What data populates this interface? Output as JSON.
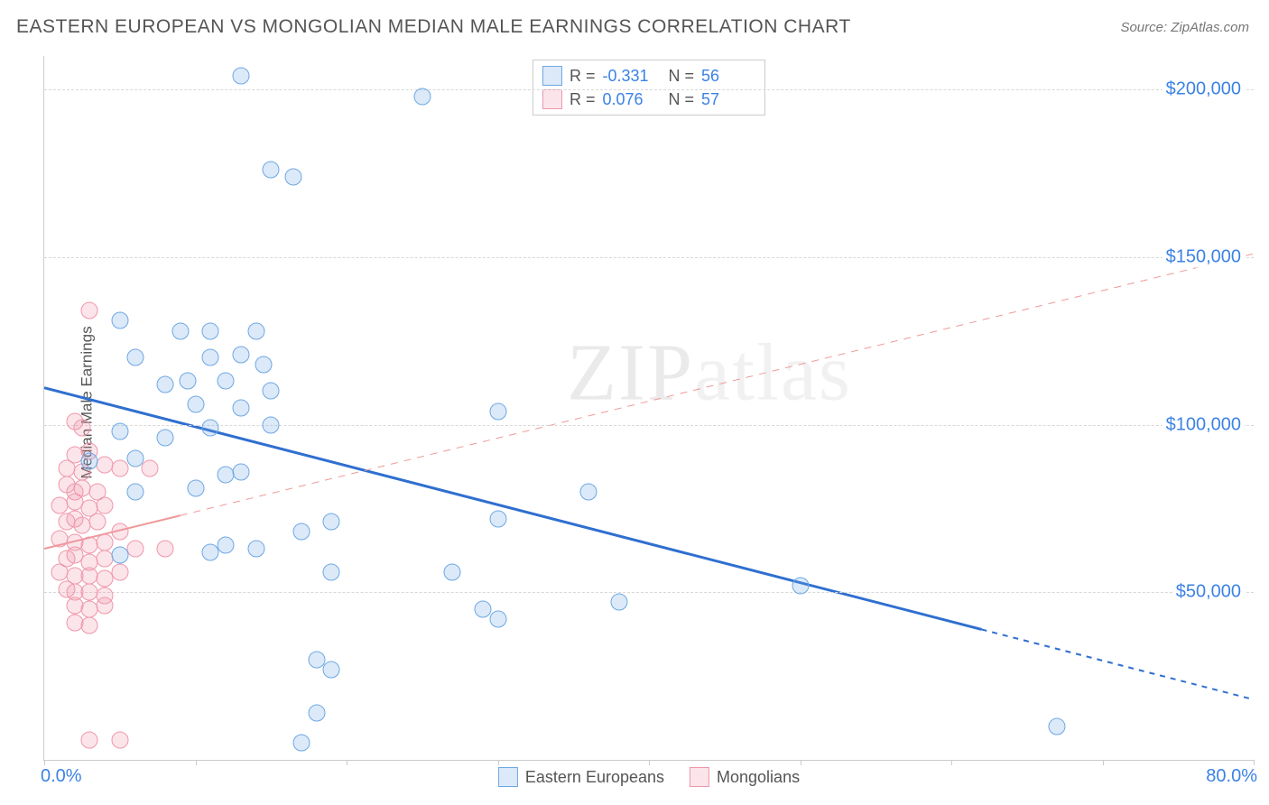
{
  "title": "EASTERN EUROPEAN VS MONGOLIAN MEDIAN MALE EARNINGS CORRELATION CHART",
  "source": "Source: ZipAtlas.com",
  "ylabel": "Median Male Earnings",
  "watermark_bold": "ZIP",
  "watermark_thin": "atlas",
  "chart": {
    "type": "scatter",
    "xlim": [
      0,
      80
    ],
    "ylim": [
      0,
      210000
    ],
    "x_start_label": "0.0%",
    "x_end_label": "80.0%",
    "y_grid": [
      50000,
      100000,
      150000,
      200000
    ],
    "y_grid_labels": [
      "$50,000",
      "$100,000",
      "$150,000",
      "$200,000"
    ],
    "x_ticks": [
      0,
      10,
      20,
      30,
      40,
      50,
      60,
      70,
      80
    ],
    "background_color": "#ffffff",
    "grid_color": "#d8d8d8",
    "axis_color": "#cccccc",
    "tick_label_color": "#3b82e6",
    "series": [
      {
        "name": "Eastern Europeans",
        "color_fill": "rgba(110,168,228,0.25)",
        "color_stroke": "#6ea8e4",
        "marker_size": 17,
        "R": "-0.331",
        "N": "56",
        "regression": {
          "x1": 0,
          "y1": 111000,
          "x2": 80,
          "y2": 18000,
          "stroke": "#2f6fd0",
          "stroke_width": 3,
          "solid_until_x": 62,
          "dash": "6,6"
        },
        "points": [
          [
            13,
            204000
          ],
          [
            25,
            198000
          ],
          [
            15,
            176000
          ],
          [
            16.5,
            174000
          ],
          [
            5,
            131000
          ],
          [
            9,
            128000
          ],
          [
            11,
            128000
          ],
          [
            14,
            128000
          ],
          [
            6,
            120000
          ],
          [
            11,
            120000
          ],
          [
            13,
            121000
          ],
          [
            14.5,
            118000
          ],
          [
            8,
            112000
          ],
          [
            9.5,
            113000
          ],
          [
            12,
            113000
          ],
          [
            15,
            110000
          ],
          [
            10,
            106000
          ],
          [
            13,
            105000
          ],
          [
            30,
            104000
          ],
          [
            5,
            98000
          ],
          [
            8,
            96000
          ],
          [
            11,
            99000
          ],
          [
            15,
            100000
          ],
          [
            3,
            89000
          ],
          [
            6,
            90000
          ],
          [
            12,
            85000
          ],
          [
            13,
            86000
          ],
          [
            6,
            80000
          ],
          [
            10,
            81000
          ],
          [
            36,
            80000
          ],
          [
            19,
            71000
          ],
          [
            30,
            72000
          ],
          [
            17,
            68000
          ],
          [
            14,
            63000
          ],
          [
            11,
            62000
          ],
          [
            12,
            64000
          ],
          [
            5,
            61000
          ],
          [
            19,
            56000
          ],
          [
            27,
            56000
          ],
          [
            50,
            52000
          ],
          [
            29,
            45000
          ],
          [
            38,
            47000
          ],
          [
            30,
            42000
          ],
          [
            18,
            30000
          ],
          [
            19,
            27000
          ],
          [
            18,
            14000
          ],
          [
            67,
            10000
          ],
          [
            17,
            5000
          ]
        ]
      },
      {
        "name": "Mongolians",
        "color_fill": "rgba(240,150,170,0.25)",
        "color_stroke": "#f096aa",
        "marker_size": 17,
        "R": "0.076",
        "N": "57",
        "regression": {
          "x1": 0,
          "y1": 63000,
          "x2": 80,
          "y2": 151000,
          "stroke": "#e99",
          "stroke_width": 2,
          "solid_until_x": 9,
          "dash": "8,7"
        },
        "points": [
          [
            3,
            134000
          ],
          [
            2,
            101000
          ],
          [
            2.5,
            99000
          ],
          [
            2,
            91000
          ],
          [
            3,
            92000
          ],
          [
            1.5,
            87000
          ],
          [
            2.5,
            86000
          ],
          [
            4,
            88000
          ],
          [
            5,
            87000
          ],
          [
            7,
            87000
          ],
          [
            1.5,
            82000
          ],
          [
            2,
            80000
          ],
          [
            2.5,
            81000
          ],
          [
            3.5,
            80000
          ],
          [
            1,
            76000
          ],
          [
            2,
            77000
          ],
          [
            3,
            75000
          ],
          [
            4,
            76000
          ],
          [
            1.5,
            71000
          ],
          [
            2,
            72000
          ],
          [
            2.5,
            70000
          ],
          [
            3.5,
            71000
          ],
          [
            5,
            68000
          ],
          [
            1,
            66000
          ],
          [
            2,
            65000
          ],
          [
            3,
            64000
          ],
          [
            4,
            65000
          ],
          [
            6,
            63000
          ],
          [
            8,
            63000
          ],
          [
            1.5,
            60000
          ],
          [
            2,
            61000
          ],
          [
            3,
            59000
          ],
          [
            4,
            60000
          ],
          [
            1,
            56000
          ],
          [
            2,
            55000
          ],
          [
            3,
            55000
          ],
          [
            4,
            54000
          ],
          [
            5,
            56000
          ],
          [
            1.5,
            51000
          ],
          [
            2,
            50000
          ],
          [
            3,
            50000
          ],
          [
            4,
            49000
          ],
          [
            2,
            46000
          ],
          [
            3,
            45000
          ],
          [
            4,
            46000
          ],
          [
            2,
            41000
          ],
          [
            3,
            40000
          ],
          [
            3,
            6000
          ],
          [
            5,
            6000
          ]
        ]
      }
    ]
  },
  "bottom_legend": [
    {
      "label": "Eastern Europeans",
      "class": "blue"
    },
    {
      "label": "Mongolians",
      "class": "pink"
    }
  ]
}
